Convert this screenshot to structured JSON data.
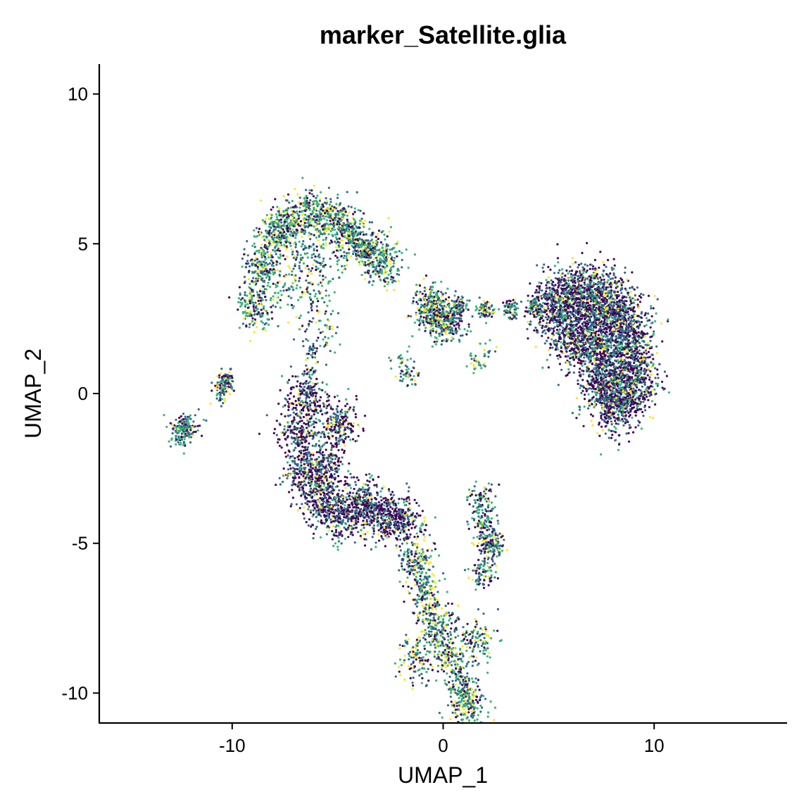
{
  "chart_data": {
    "type": "scatter",
    "title": "marker_Satellite.glia",
    "xlabel": "UMAP_1",
    "ylabel": "UMAP_2",
    "xlim": [
      -16.3,
      16.3
    ],
    "ylim": [
      -11,
      11
    ],
    "xticks": [
      -10,
      0,
      10
    ],
    "yticks": [
      -10,
      -5,
      0,
      5,
      10
    ],
    "xtick_labels": [
      "-10",
      "0",
      "10"
    ],
    "ytick_labels": [
      "-10",
      "-5",
      "0",
      "5",
      "10"
    ],
    "grid": false,
    "legend": "none",
    "color_scale": [
      "#440154",
      "#31688e",
      "#35b779",
      "#fde725"
    ],
    "clusters": [
      {
        "name": "top-left-arc",
        "points": [
          [
            -8.9,
            2.9
          ],
          [
            -8.6,
            4.2
          ],
          [
            -8.0,
            5.2
          ],
          [
            -7.2,
            5.7
          ],
          [
            -6.2,
            6.0
          ],
          [
            -5.2,
            5.8
          ],
          [
            -4.4,
            5.3
          ],
          [
            -3.6,
            4.8
          ],
          [
            -2.8,
            4.4
          ]
        ],
        "spread": 0.45,
        "n": 1600,
        "weights": [
          0.2,
          0.3,
          0.35,
          0.15
        ]
      },
      {
        "name": "top-left-inner",
        "points": [
          [
            -7.6,
            3.6
          ],
          [
            -6.6,
            4.4
          ],
          [
            -5.6,
            4.6
          ],
          [
            -6.2,
            3.2
          ],
          [
            -5.8,
            2.0
          ]
        ],
        "spread": 0.5,
        "n": 300,
        "weights": [
          0.2,
          0.35,
          0.35,
          0.1
        ]
      },
      {
        "name": "neck-strip",
        "points": [
          [
            -6.3,
            1.4
          ],
          [
            -6.3,
            0.8
          ]
        ],
        "spread": 0.15,
        "n": 40,
        "weights": [
          0.2,
          0.4,
          0.3,
          0.1
        ]
      },
      {
        "name": "center-node",
        "points": [
          [
            -0.7,
            3.0
          ],
          [
            -0.3,
            2.6
          ],
          [
            0.2,
            2.4
          ]
        ],
        "spread": 0.45,
        "n": 480,
        "weights": [
          0.25,
          0.3,
          0.3,
          0.15
        ]
      },
      {
        "name": "bridge",
        "points": [
          [
            0.8,
            2.9
          ],
          [
            2.0,
            2.8
          ],
          [
            3.2,
            2.8
          ],
          [
            4.3,
            2.9
          ]
        ],
        "spread": 0.18,
        "n": 280,
        "weights": [
          0.2,
          0.35,
          0.35,
          0.1
        ]
      },
      {
        "name": "right-blob",
        "points": [
          [
            5.2,
            2.8
          ],
          [
            6.2,
            3.2
          ],
          [
            7.3,
            3.3
          ],
          [
            8.3,
            2.7
          ],
          [
            8.9,
            1.6
          ],
          [
            9.0,
            0.4
          ],
          [
            8.2,
            -0.4
          ],
          [
            7.3,
            1.7
          ],
          [
            6.3,
            1.9
          ],
          [
            7.6,
            0.4
          ]
        ],
        "spread": 0.62,
        "n": 3800,
        "weights": [
          0.45,
          0.3,
          0.17,
          0.08
        ]
      },
      {
        "name": "center-spur",
        "points": [
          [
            -1.9,
            1.0
          ],
          [
            -1.6,
            0.6
          ]
        ],
        "spread": 0.25,
        "n": 60,
        "weights": [
          0.2,
          0.3,
          0.3,
          0.2
        ]
      },
      {
        "name": "center-spur-2",
        "points": [
          [
            1.5,
            1.1
          ],
          [
            2.0,
            1.3
          ]
        ],
        "spread": 0.25,
        "n": 40,
        "weights": [
          0.1,
          0.3,
          0.3,
          0.3
        ]
      },
      {
        "name": "small-cluster-a",
        "points": [
          [
            -10.3,
            0.4
          ],
          [
            -10.5,
            0.1
          ]
        ],
        "spread": 0.22,
        "n": 120,
        "weights": [
          0.25,
          0.35,
          0.25,
          0.15
        ]
      },
      {
        "name": "small-cluster-b",
        "points": [
          [
            -12.4,
            -1.3
          ],
          [
            -12.2,
            -1.1
          ]
        ],
        "spread": 0.3,
        "n": 180,
        "weights": [
          0.25,
          0.35,
          0.3,
          0.1
        ]
      },
      {
        "name": "lower-left-arc",
        "points": [
          [
            -6.5,
            -0.1
          ],
          [
            -6.8,
            -1.4
          ],
          [
            -6.6,
            -2.7
          ],
          [
            -5.8,
            -3.7
          ],
          [
            -4.8,
            -4.0
          ],
          [
            -3.8,
            -3.7
          ],
          [
            -2.8,
            -4.1
          ],
          [
            -1.9,
            -4.3
          ],
          [
            -5.0,
            -1.0
          ],
          [
            -5.5,
            -2.5
          ]
        ],
        "spread": 0.5,
        "n": 2200,
        "weights": [
          0.5,
          0.3,
          0.13,
          0.07
        ]
      },
      {
        "name": "lower-tail",
        "points": [
          [
            -1.2,
            -5.6
          ],
          [
            -0.8,
            -6.8
          ],
          [
            -0.3,
            -7.8
          ],
          [
            0.4,
            -8.8
          ],
          [
            0.9,
            -9.8
          ],
          [
            1.1,
            -10.4
          ],
          [
            -1.3,
            -8.8
          ],
          [
            1.5,
            -8.2
          ]
        ],
        "spread": 0.45,
        "n": 1100,
        "weights": [
          0.2,
          0.3,
          0.3,
          0.2
        ]
      },
      {
        "name": "right-tail",
        "points": [
          [
            1.8,
            -3.5
          ],
          [
            1.9,
            -4.3
          ],
          [
            2.1,
            -5.0
          ],
          [
            2.4,
            -5.1
          ],
          [
            1.9,
            -6.0
          ]
        ],
        "spread": 0.3,
        "n": 380,
        "weights": [
          0.3,
          0.35,
          0.25,
          0.1
        ]
      }
    ]
  }
}
